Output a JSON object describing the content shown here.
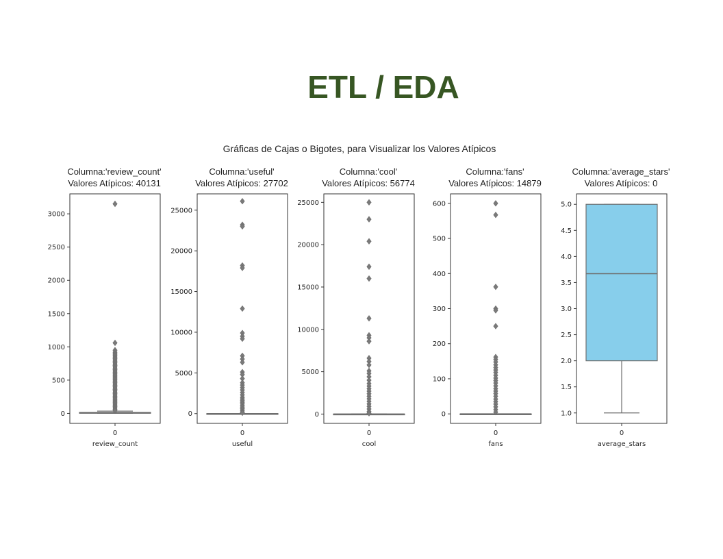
{
  "slide": {
    "title": "ETL / EDA"
  },
  "figure": {
    "suptitle": "Gráficas de Cajas o Bigotes, para Visualizar los Valores Atípicos"
  },
  "chart_data": [
    {
      "type": "box",
      "title_line1": "Columna:'review_count'",
      "title_line2": "Valores Atípicos: 40131",
      "xlabel": "review_count",
      "xtick": "0",
      "ylim": [
        -150,
        3300
      ],
      "yticks": [
        0,
        500,
        1000,
        1500,
        2000,
        2500,
        3000
      ],
      "ytick_labels": [
        "0",
        "500",
        "1000",
        "1500",
        "2000",
        "2500",
        "3000"
      ],
      "box": {
        "whisker_low": 0,
        "q1": 2,
        "median": 5,
        "q3": 15,
        "whisker_high": 34
      },
      "box_color": "#87ceeb",
      "outliers": [
        3150,
        1060,
        950,
        920,
        900,
        880,
        860,
        840,
        820,
        800,
        780,
        760,
        740,
        720,
        700,
        680,
        660,
        640,
        620,
        600,
        580,
        560,
        540,
        520,
        500,
        480,
        460,
        440,
        420,
        400,
        380,
        360,
        340,
        320,
        300,
        280,
        260,
        240,
        220,
        200,
        180,
        160,
        140,
        120,
        100,
        80,
        60,
        40
      ]
    },
    {
      "type": "box",
      "title_line1": "Columna:'useful'",
      "title_line2": "Valores Atípicos: 27702",
      "xlabel": "useful",
      "xtick": "0",
      "ylim": [
        -1200,
        27000
      ],
      "yticks": [
        0,
        5000,
        10000,
        15000,
        20000,
        25000
      ],
      "ytick_labels": [
        "0",
        "5000",
        "10000",
        "15000",
        "20000",
        "25000"
      ],
      "box": {
        "whisker_low": 0,
        "q1": 0,
        "median": 1,
        "q3": 5,
        "whisker_high": 12
      },
      "box_color": "#87ceeb",
      "outliers": [
        26100,
        23200,
        23000,
        18200,
        17900,
        12900,
        9900,
        9500,
        9200,
        7100,
        6700,
        6300,
        5100,
        4800,
        4300,
        3800,
        3500,
        3200,
        2900,
        2600,
        2300,
        2000,
        1800,
        1600,
        1400,
        1200,
        1000,
        800,
        600,
        400,
        200,
        100
      ]
    },
    {
      "type": "box",
      "title_line1": "Columna:'cool'",
      "title_line2": "Valores Atípicos: 56774",
      "xlabel": "cool",
      "xtick": "0",
      "ylim": [
        -1100,
        26000
      ],
      "yticks": [
        0,
        5000,
        10000,
        15000,
        20000,
        25000
      ],
      "ytick_labels": [
        "0",
        "5000",
        "10000",
        "15000",
        "20000",
        "25000"
      ],
      "box": {
        "whisker_low": 0,
        "q1": 0,
        "median": 0,
        "q3": 2,
        "whisker_high": 5
      },
      "box_color": "#87ceeb",
      "outliers": [
        25000,
        23000,
        20400,
        17400,
        16000,
        11300,
        9300,
        9000,
        8600,
        6600,
        6200,
        5800,
        5100,
        4800,
        4400,
        4000,
        3600,
        3300,
        3000,
        2700,
        2400,
        2100,
        1800,
        1500,
        1200,
        900,
        600,
        300,
        100
      ]
    },
    {
      "type": "box",
      "title_line1": "Columna:'fans'",
      "title_line2": "Valores Atípicos: 14879",
      "xlabel": "fans",
      "xtick": "0",
      "ylim": [
        -27,
        627
      ],
      "yticks": [
        0,
        100,
        200,
        300,
        400,
        500,
        600
      ],
      "ytick_labels": [
        "0",
        "100",
        "200",
        "300",
        "400",
        "500",
        "600"
      ],
      "box": {
        "whisker_low": 0,
        "q1": 0,
        "median": 0,
        "q3": 0,
        "whisker_high": 0
      },
      "box_color": "#87ceeb",
      "outliers": [
        600,
        567,
        362,
        300,
        295,
        250,
        162,
        155,
        148,
        140,
        132,
        125,
        118,
        110,
        102,
        95,
        88,
        80,
        72,
        65,
        58,
        50,
        42,
        35,
        28,
        20,
        12,
        5
      ]
    },
    {
      "type": "box",
      "title_line1": "Columna:'average_stars'",
      "title_line2": "Valores Atípicos: 0",
      "xlabel": "average_stars",
      "xtick": "0",
      "ylim": [
        0.8,
        5.2
      ],
      "yticks": [
        1.0,
        1.5,
        2.0,
        2.5,
        3.0,
        3.5,
        4.0,
        4.5,
        5.0
      ],
      "ytick_labels": [
        "1.0",
        "1.5",
        "2.0",
        "2.5",
        "3.0",
        "3.5",
        "4.0",
        "4.5",
        "5.0"
      ],
      "box": {
        "whisker_low": 1.0,
        "q1": 2.0,
        "median": 3.67,
        "q3": 5.0,
        "whisker_high": 5.0
      },
      "box_color": "#87ceeb",
      "outliers": []
    }
  ]
}
